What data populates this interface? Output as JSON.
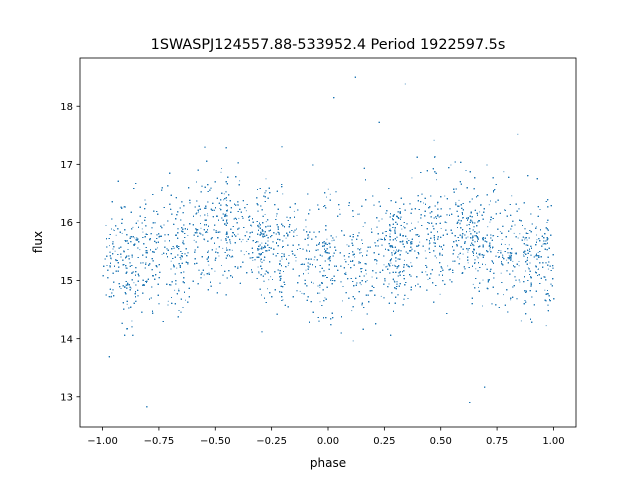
{
  "chart_data": {
    "type": "scatter",
    "title": "1SWASPJ124557.88-533952.4 Period 1922597.5s",
    "xlabel": "phase",
    "ylabel": "flux",
    "xlim": [
      -1.1,
      1.1
    ],
    "ylim": [
      12.48,
      18.83
    ],
    "xticks": [
      -1.0,
      -0.75,
      -0.5,
      -0.25,
      0.0,
      0.25,
      0.5,
      0.75,
      1.0
    ],
    "xtick_labels": [
      "−1.00",
      "−0.75",
      "−0.50",
      "−0.25",
      "0.00",
      "0.25",
      "0.50",
      "0.75",
      "1.00"
    ],
    "yticks": [
      13,
      14,
      15,
      16,
      17,
      18
    ],
    "ytick_labels": [
      "13",
      "14",
      "15",
      "16",
      "17",
      "18"
    ],
    "grid": false,
    "legend": "none",
    "marker_color": "#1f77b4",
    "phase_range": [
      -1.0,
      1.0
    ],
    "central_profile": [
      {
        "phase": -1.0,
        "mean": 15.35,
        "spread": 0.45
      },
      {
        "phase": -0.9,
        "mean": 15.25,
        "spread": 0.55
      },
      {
        "phase": -0.8,
        "mean": 15.45,
        "spread": 0.5
      },
      {
        "phase": -0.7,
        "mean": 15.55,
        "spread": 0.45
      },
      {
        "phase": -0.6,
        "mean": 15.75,
        "spread": 0.45
      },
      {
        "phase": -0.5,
        "mean": 15.85,
        "spread": 0.45
      },
      {
        "phase": -0.45,
        "mean": 15.95,
        "spread": 0.5
      },
      {
        "phase": -0.4,
        "mean": 15.85,
        "spread": 0.45
      },
      {
        "phase": -0.3,
        "mean": 15.65,
        "spread": 0.45
      },
      {
        "phase": -0.2,
        "mean": 15.55,
        "spread": 0.45
      },
      {
        "phase": -0.1,
        "mean": 15.35,
        "spread": 0.45
      },
      {
        "phase": 0.0,
        "mean": 15.35,
        "spread": 0.45
      },
      {
        "phase": 0.1,
        "mean": 15.25,
        "spread": 0.55
      },
      {
        "phase": 0.2,
        "mean": 15.45,
        "spread": 0.5
      },
      {
        "phase": 0.3,
        "mean": 15.55,
        "spread": 0.45
      },
      {
        "phase": 0.4,
        "mean": 15.75,
        "spread": 0.45
      },
      {
        "phase": 0.5,
        "mean": 15.85,
        "spread": 0.45
      },
      {
        "phase": 0.55,
        "mean": 15.95,
        "spread": 0.5
      },
      {
        "phase": 0.6,
        "mean": 15.85,
        "spread": 0.45
      },
      {
        "phase": 0.7,
        "mean": 15.65,
        "spread": 0.45
      },
      {
        "phase": 0.8,
        "mean": 15.55,
        "spread": 0.45
      },
      {
        "phase": 0.9,
        "mean": 15.35,
        "spread": 0.45
      },
      {
        "phase": 1.0,
        "mean": 15.35,
        "spread": 0.45
      }
    ],
    "flux_extent": [
      12.75,
      18.55
    ]
  }
}
